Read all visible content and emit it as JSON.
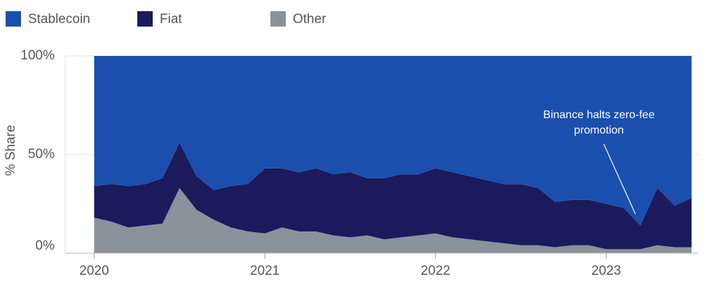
{
  "chart_data": {
    "type": "stacked_area",
    "y_axis_label": "% Share",
    "annotation": [
      "Binance halts zero-fee",
      "promotion"
    ],
    "x": [
      2020.0,
      2020.1,
      2020.2,
      2020.3,
      2020.4,
      2020.5,
      2020.6,
      2020.7,
      2020.8,
      2020.9,
      2021.0,
      2021.1,
      2021.2,
      2021.3,
      2021.4,
      2021.5,
      2021.6,
      2021.7,
      2021.8,
      2021.9,
      2022.0,
      2022.1,
      2022.2,
      2022.3,
      2022.4,
      2022.5,
      2022.6,
      2022.7,
      2022.8,
      2022.9,
      2023.0,
      2023.1,
      2023.2,
      2023.3,
      2023.4,
      2023.5
    ],
    "series": [
      {
        "name": "Stablecoin",
        "color": "#1a4fae",
        "values": [
          66,
          65,
          66,
          65,
          62,
          44,
          61,
          68,
          66,
          65,
          57,
          57,
          59,
          57,
          60,
          59,
          62,
          62,
          60,
          60,
          57,
          59,
          61,
          63,
          65,
          65,
          67,
          74,
          73,
          73,
          75,
          77,
          86,
          67,
          76,
          72
        ]
      },
      {
        "name": "Fiat",
        "color": "#1b1a5c",
        "values": [
          16,
          19,
          21,
          21,
          23,
          23,
          17,
          15,
          21,
          24,
          33,
          30,
          30,
          32,
          31,
          33,
          29,
          31,
          32,
          31,
          33,
          33,
          32,
          31,
          30,
          31,
          29,
          23,
          23,
          23,
          23,
          21,
          12,
          29,
          21,
          25
        ]
      },
      {
        "name": "Other",
        "color": "#8a929c",
        "values": [
          18,
          16,
          13,
          14,
          15,
          33,
          22,
          17,
          13,
          11,
          10,
          13,
          11,
          11,
          9,
          8,
          9,
          7,
          8,
          9,
          10,
          8,
          7,
          6,
          5,
          4,
          4,
          3,
          4,
          4,
          2,
          2,
          2,
          4,
          3,
          3
        ]
      }
    ],
    "xlim": [
      2019.83,
      2023.54
    ],
    "xticks": [
      2020,
      2021,
      2022,
      2023
    ],
    "ylim": [
      0,
      100
    ],
    "yticks": [
      {
        "value": 0,
        "label": "0%"
      },
      {
        "value": 50,
        "label": "50%"
      },
      {
        "value": 100,
        "label": "100%"
      }
    ],
    "grid": true
  }
}
